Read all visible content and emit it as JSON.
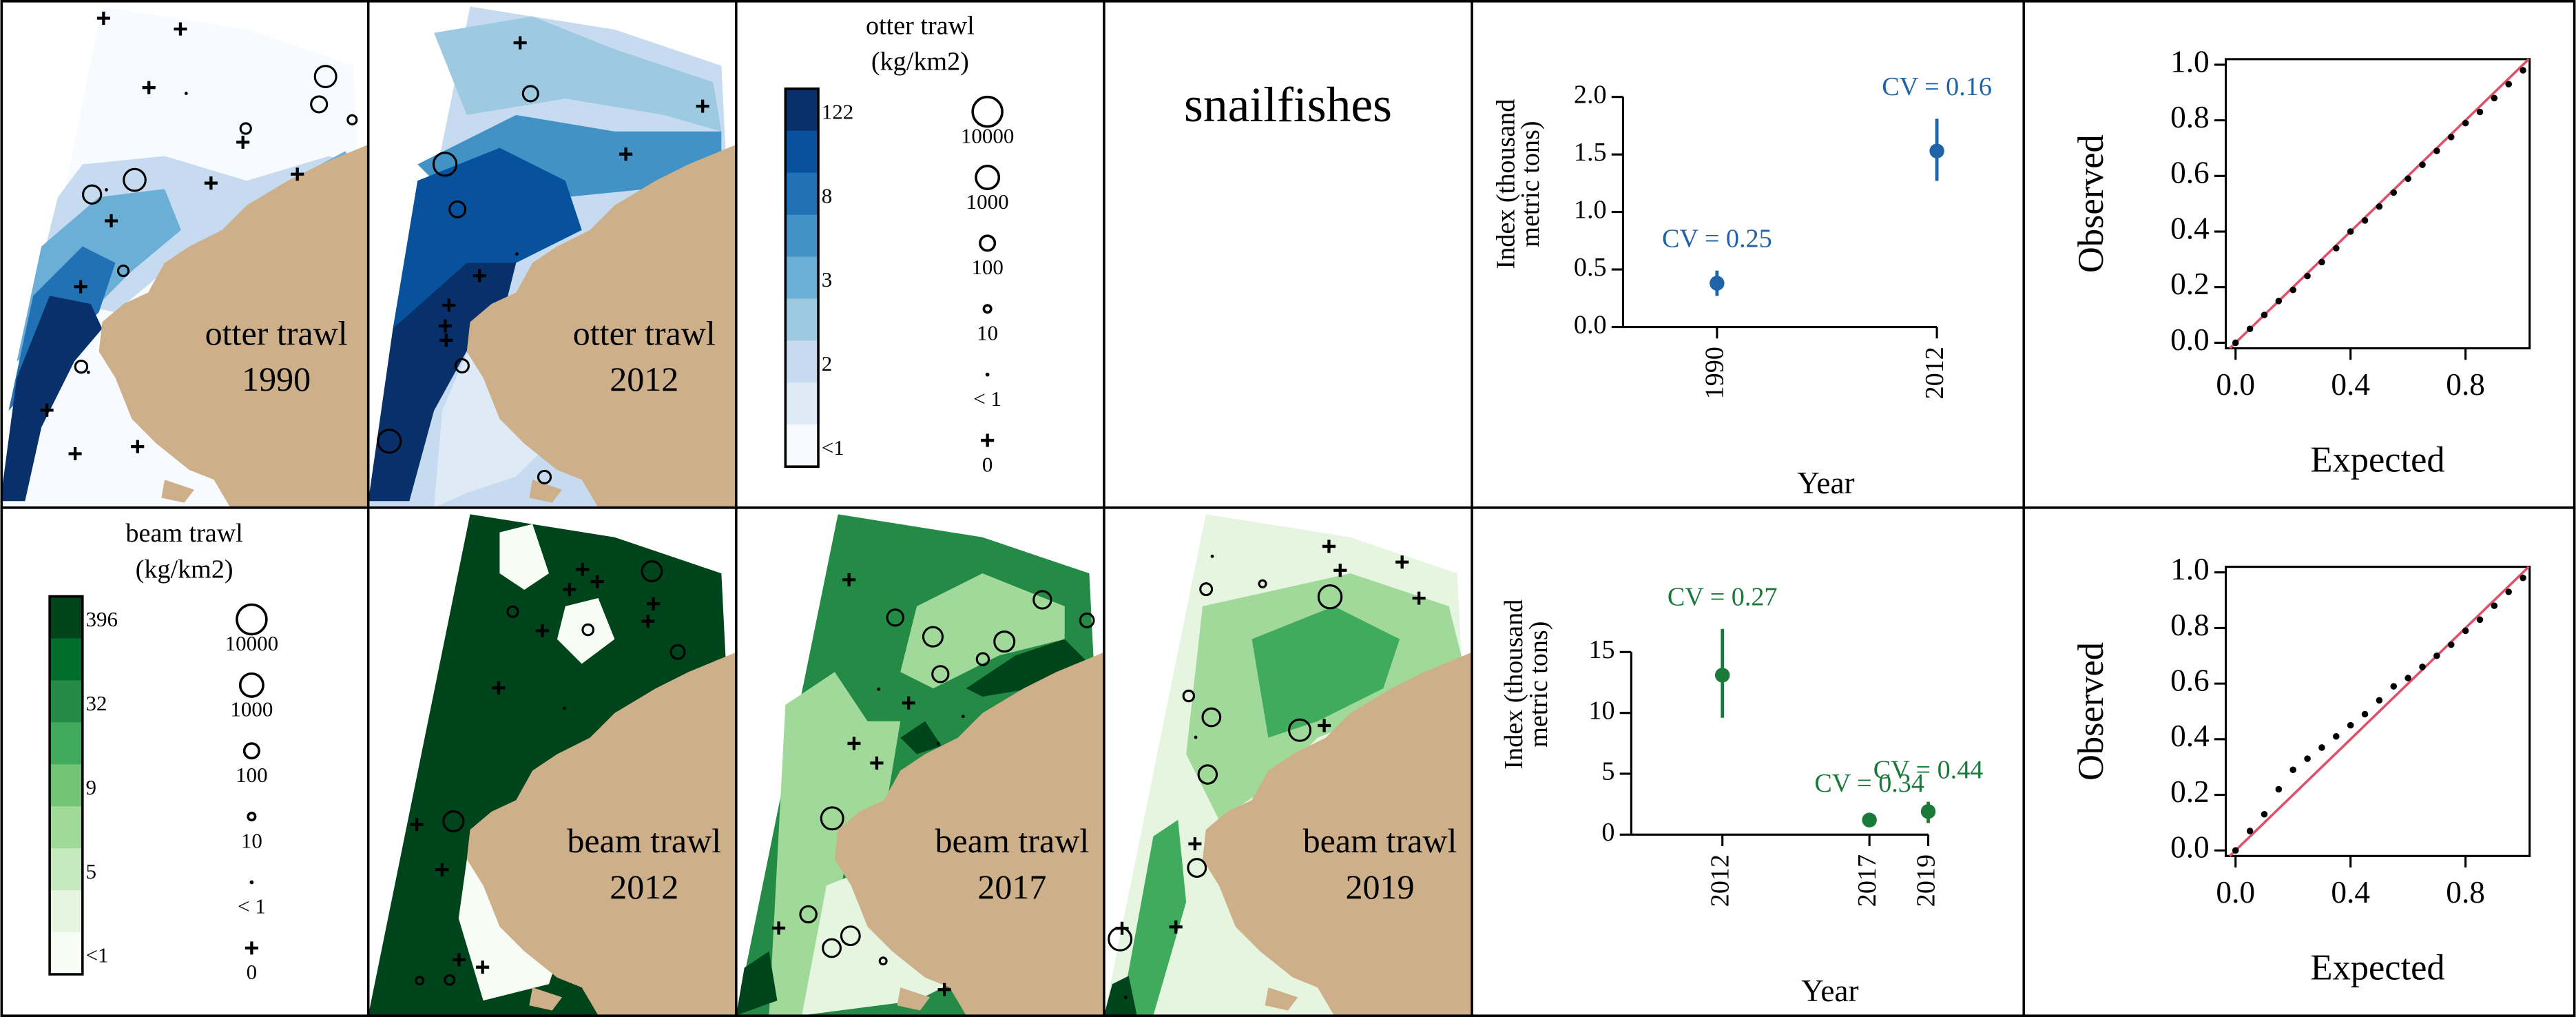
{
  "title": "snailfishes",
  "maps": [
    {
      "label": "otter trawl",
      "year": "1990"
    },
    {
      "label": "otter trawl",
      "year": "2012"
    },
    {
      "label": "beam trawl",
      "year": "2012"
    },
    {
      "label": "beam trawl",
      "year": "2017"
    },
    {
      "label": "beam trawl",
      "year": "2019"
    }
  ],
  "legends": [
    {
      "title": [
        "otter trawl",
        "(kg/km2)"
      ],
      "colors": [
        "#08306b",
        "#08519c",
        "#2171b5",
        "#4292c6",
        "#6baed6",
        "#9ecae1",
        "#c6dbef",
        "#deebf7",
        "#f7fbff"
      ],
      "color_labels": [
        "122",
        "8",
        "3",
        "2",
        "<1"
      ],
      "size_labels": [
        "10000",
        "1000",
        "100",
        "10",
        "< 1",
        "0"
      ]
    },
    {
      "title": [
        "beam trawl",
        "(kg/km2)"
      ],
      "colors": [
        "#00441b",
        "#006d2c",
        "#238b45",
        "#41ab5d",
        "#74c476",
        "#a1d99b",
        "#c7e9c0",
        "#e5f5e0",
        "#f7fcf5"
      ],
      "color_labels": [
        "396",
        "32",
        "9",
        "5",
        "<1"
      ],
      "size_labels": [
        "10000",
        "1000",
        "100",
        "10",
        "< 1",
        "0"
      ]
    }
  ],
  "chart_data": [
    {
      "type": "errorbar",
      "ylabel": [
        "Index (thousand",
        "metric tons)"
      ],
      "xlabel": "Year",
      "x": [
        1990,
        2012
      ],
      "values": [
        0.38,
        1.53
      ],
      "lower": [
        0.27,
        1.27
      ],
      "upper": [
        0.49,
        1.81
      ],
      "annotations": [
        "CV = 0.25",
        "CV = 0.16"
      ],
      "color": "#1f63a8",
      "xlim": [
        1980.6,
        2017.9
      ],
      "xticks": [
        1990,
        2012
      ],
      "ylim": [
        0,
        2.2
      ],
      "yticks": [
        {
          "value": 0,
          "label": "0.0"
        },
        {
          "value": 0.5,
          "label": "0.5"
        },
        {
          "value": 1,
          "label": "1.0"
        },
        {
          "value": 1.5,
          "label": "1.5"
        },
        {
          "value": 2,
          "label": "2.0"
        }
      ]
    },
    {
      "type": "scatter",
      "xlabel": "Expected",
      "ylabel": "Observed",
      "color": "#000000",
      "reference_line_color": "#e0506a",
      "x": [
        0,
        0.05,
        0.1,
        0.15,
        0.2,
        0.25,
        0.3,
        0.35,
        0.4,
        0.45,
        0.5,
        0.55,
        0.6,
        0.65,
        0.7,
        0.75,
        0.8,
        0.85,
        0.9,
        0.95,
        1
      ],
      "values": [
        0,
        0.05,
        0.1,
        0.15,
        0.19,
        0.24,
        0.29,
        0.34,
        0.4,
        0.44,
        0.49,
        0.54,
        0.59,
        0.64,
        0.69,
        0.74,
        0.79,
        0.83,
        0.88,
        0.93,
        0.98
      ],
      "xlim": [
        -0.034,
        1.023
      ],
      "xticks": [
        {
          "value": 0,
          "label": "0.0"
        },
        {
          "value": 0.4,
          "label": "0.4"
        },
        {
          "value": 0.8,
          "label": "0.8"
        }
      ],
      "ylim": [
        -0.02,
        1.02
      ],
      "yticks": [
        {
          "value": 0,
          "label": "0.0"
        },
        {
          "value": 0.2,
          "label": "0.2"
        },
        {
          "value": 0.4,
          "label": "0.4"
        },
        {
          "value": 0.6,
          "label": "0.6"
        },
        {
          "value": 0.8,
          "label": "0.8"
        },
        {
          "value": 1,
          "label": "1.0"
        }
      ]
    },
    {
      "type": "errorbar",
      "ylabel": [
        "Index (thousand",
        "metric tons)"
      ],
      "xlabel": "Year",
      "x": [
        2012,
        2017,
        2019
      ],
      "values": [
        13.1,
        1.2,
        1.9
      ],
      "lower": [
        9.6,
        0.9,
        0.95
      ],
      "upper": [
        16.9,
        1.6,
        2.7
      ],
      "annotations": [
        "CV = 0.27",
        "CV = 0.34",
        "CV = 0.44"
      ],
      "color": "#1a7a3a",
      "xlim": [
        2008.9,
        2021.3
      ],
      "xticks": [
        2012,
        2017,
        2019
      ],
      "ylim": [
        0,
        22
      ],
      "yticks": [
        0,
        5,
        10,
        15
      ]
    },
    {
      "type": "scatter",
      "xlabel": "Expected",
      "ylabel": "Observed",
      "color": "#000000",
      "reference_line_color": "#e0506a",
      "x": [
        0,
        0.05,
        0.1,
        0.15,
        0.2,
        0.25,
        0.3,
        0.35,
        0.4,
        0.45,
        0.5,
        0.55,
        0.6,
        0.65,
        0.7,
        0.75,
        0.8,
        0.85,
        0.9,
        0.95,
        1
      ],
      "values": [
        0,
        0.07,
        0.13,
        0.22,
        0.29,
        0.33,
        0.37,
        0.41,
        0.45,
        0.49,
        0.54,
        0.59,
        0.62,
        0.66,
        0.7,
        0.74,
        0.79,
        0.83,
        0.88,
        0.93,
        0.98
      ],
      "xlim": [
        -0.034,
        1.023
      ],
      "xticks": [
        {
          "value": 0,
          "label": "0.0"
        },
        {
          "value": 0.4,
          "label": "0.4"
        },
        {
          "value": 0.8,
          "label": "0.8"
        }
      ],
      "ylim": [
        -0.02,
        1.02
      ],
      "yticks": [
        {
          "value": 0,
          "label": "0.0"
        },
        {
          "value": 0.2,
          "label": "0.2"
        },
        {
          "value": 0.4,
          "label": "0.4"
        },
        {
          "value": 0.6,
          "label": "0.6"
        },
        {
          "value": 0.8,
          "label": "0.8"
        },
        {
          "value": 1,
          "label": "1.0"
        }
      ]
    }
  ]
}
